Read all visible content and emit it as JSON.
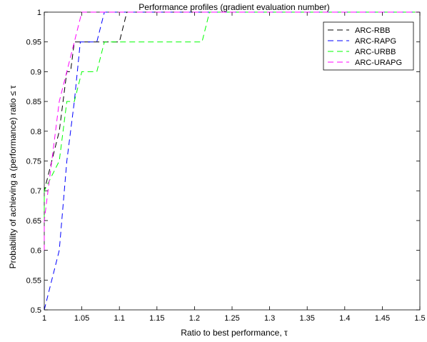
{
  "chart_data": {
    "type": "line",
    "title": "Performance profiles (gradient evaluation number)",
    "xlabel": "Ratio to best performance, τ",
    "ylabel": "Probability of achieving a (performance) ratio ≤ τ",
    "xlim": [
      1,
      1.5
    ],
    "ylim": [
      0.5,
      1
    ],
    "xticks": [
      "1",
      "1.05",
      "1.1",
      "1.15",
      "1.2",
      "1.25",
      "1.3",
      "1.35",
      "1.4",
      "1.45",
      "1.5"
    ],
    "yticks": [
      "0.5",
      "0.55",
      "0.6",
      "0.65",
      "0.7",
      "0.75",
      "0.8",
      "0.85",
      "0.9",
      "0.95",
      "1"
    ],
    "grid": false,
    "legend_position": "top-right",
    "series": [
      {
        "name": "ARC-RBB",
        "color": "#000000",
        "x": [
          1.0,
          1.0,
          1.01,
          1.02,
          1.025,
          1.03,
          1.035,
          1.04,
          1.05,
          1.07,
          1.09,
          1.1,
          1.11,
          1.5
        ],
        "y": [
          0.65,
          0.7,
          0.75,
          0.8,
          0.85,
          0.9,
          0.9,
          0.95,
          0.95,
          0.95,
          0.95,
          0.95,
          1.0,
          1.0
        ]
      },
      {
        "name": "ARC-RAPG",
        "color": "#0000ff",
        "x": [
          1.0,
          1.02,
          1.03,
          1.04,
          1.048,
          1.05,
          1.07,
          1.08,
          1.5
        ],
        "y": [
          0.5,
          0.6,
          0.75,
          0.85,
          0.95,
          0.95,
          0.95,
          1.0,
          1.0
        ]
      },
      {
        "name": "ARC-URBB",
        "color": "#00ff00",
        "x": [
          1.0,
          1.0,
          1.02,
          1.03,
          1.04,
          1.05,
          1.06,
          1.07,
          1.08,
          1.21,
          1.22,
          1.5
        ],
        "y": [
          0.65,
          0.7,
          0.75,
          0.85,
          0.85,
          0.9,
          0.9,
          0.9,
          0.95,
          0.95,
          1.0,
          1.0
        ]
      },
      {
        "name": "ARC-URAPG",
        "color": "#ff00ff",
        "x": [
          1.0,
          1.0,
          1.01,
          1.02,
          1.04,
          1.05,
          1.055,
          1.5
        ],
        "y": [
          0.6,
          0.65,
          0.75,
          0.85,
          0.95,
          1.0,
          1.0,
          1.0
        ]
      }
    ]
  }
}
